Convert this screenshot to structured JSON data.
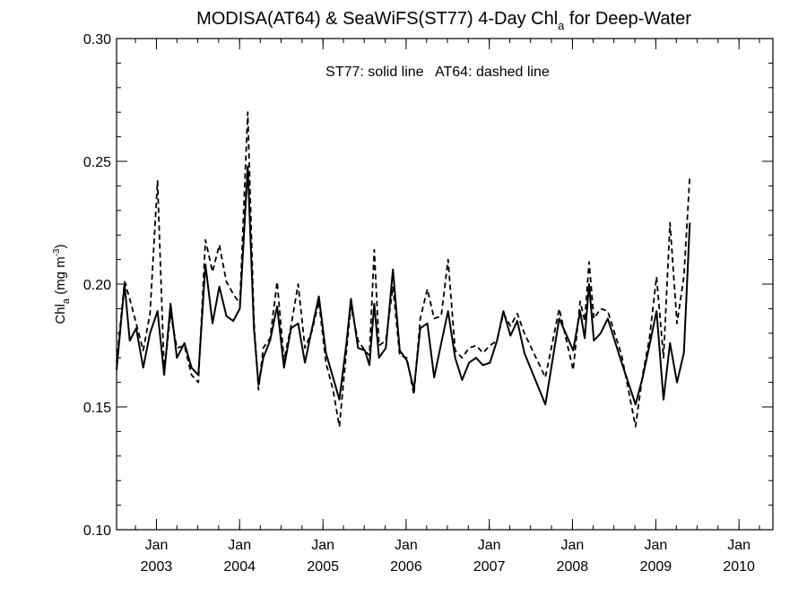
{
  "chart_data": {
    "type": "line",
    "title": {
      "prefix": "MODISA(AT64) & SeaWiFS(ST77) 4-Day Chl",
      "sub": "a",
      "suffix": " for Deep-Water"
    },
    "ylabel": {
      "prefix": "Chl",
      "sub": "a",
      "mid": " (mg m",
      "sup": "-3",
      "suffix": ")"
    },
    "annotation": "ST77: solid line   AT64: dashed line",
    "ylim": [
      0.1,
      0.3
    ],
    "xlim": [
      "2002-07-10",
      "2010-05-30"
    ],
    "y_ticks": [
      "0.10",
      "0.15",
      "0.20",
      "0.25",
      "0.30"
    ],
    "y_tick_values": [
      0.1,
      0.15,
      0.2,
      0.25,
      0.3
    ],
    "x_ticks": [
      {
        "date": "2003-01-01",
        "month": "Jan",
        "year": "2003"
      },
      {
        "date": "2004-01-01",
        "month": "Jan",
        "year": "2004"
      },
      {
        "date": "2005-01-01",
        "month": "Jan",
        "year": "2005"
      },
      {
        "date": "2006-01-01",
        "month": "Jan",
        "year": "2006"
      },
      {
        "date": "2007-01-01",
        "month": "Jan",
        "year": "2007"
      },
      {
        "date": "2008-01-01",
        "month": "Jan",
        "year": "2008"
      },
      {
        "date": "2009-01-01",
        "month": "Jan",
        "year": "2009"
      },
      {
        "date": "2010-01-01",
        "month": "Jan",
        "year": "2010"
      }
    ],
    "grid": false,
    "series": [
      {
        "name": "ST77",
        "style": "solid",
        "color": "#000000",
        "points": [
          [
            "2002-07-10",
            0.165
          ],
          [
            "2002-08-14",
            0.2
          ],
          [
            "2002-09-06",
            0.177
          ],
          [
            "2002-10-04",
            0.182
          ],
          [
            "2002-11-04",
            0.166
          ],
          [
            "2002-12-04",
            0.18
          ],
          [
            "2003-01-06",
            0.189
          ],
          [
            "2003-02-04",
            0.163
          ],
          [
            "2003-03-04",
            0.192
          ],
          [
            "2003-04-01",
            0.17
          ],
          [
            "2003-05-04",
            0.176
          ],
          [
            "2003-06-04",
            0.166
          ],
          [
            "2003-07-04",
            0.163
          ],
          [
            "2003-08-04",
            0.208
          ],
          [
            "2003-09-04",
            0.184
          ],
          [
            "2003-10-04",
            0.199
          ],
          [
            "2003-11-04",
            0.187
          ],
          [
            "2003-12-04",
            0.185
          ],
          [
            "2004-01-02",
            0.19
          ],
          [
            "2004-02-06",
            0.248
          ],
          [
            "2004-03-04",
            0.182
          ],
          [
            "2004-03-24",
            0.159
          ],
          [
            "2004-04-14",
            0.17
          ],
          [
            "2004-05-14",
            0.177
          ],
          [
            "2004-06-14",
            0.191
          ],
          [
            "2004-07-14",
            0.166
          ],
          [
            "2004-08-14",
            0.182
          ],
          [
            "2004-09-14",
            0.184
          ],
          [
            "2004-10-14",
            0.168
          ],
          [
            "2004-11-14",
            0.182
          ],
          [
            "2004-12-14",
            0.195
          ],
          [
            "2005-01-14",
            0.172
          ],
          [
            "2005-02-14",
            0.162
          ],
          [
            "2005-03-14",
            0.153
          ],
          [
            "2005-04-14",
            0.176
          ],
          [
            "2005-05-04",
            0.194
          ],
          [
            "2005-06-04",
            0.174
          ],
          [
            "2005-07-04",
            0.173
          ],
          [
            "2005-07-24",
            0.167
          ],
          [
            "2005-08-14",
            0.192
          ],
          [
            "2005-09-04",
            0.17
          ],
          [
            "2005-10-04",
            0.174
          ],
          [
            "2005-11-04",
            0.206
          ],
          [
            "2005-12-04",
            0.173
          ],
          [
            "2006-01-04",
            0.169
          ],
          [
            "2006-02-04",
            0.157
          ],
          [
            "2006-03-04",
            0.182
          ],
          [
            "2006-04-04",
            0.184
          ],
          [
            "2006-05-04",
            0.162
          ],
          [
            "2006-06-04",
            0.176
          ],
          [
            "2006-07-04",
            0.189
          ],
          [
            "2006-08-04",
            0.17
          ],
          [
            "2006-09-04",
            0.161
          ],
          [
            "2006-10-04",
            0.168
          ],
          [
            "2006-11-04",
            0.17
          ],
          [
            "2006-12-04",
            0.167
          ],
          [
            "2007-01-04",
            0.168
          ],
          [
            "2007-02-04",
            0.177
          ],
          [
            "2007-03-04",
            0.189
          ],
          [
            "2007-04-04",
            0.179
          ],
          [
            "2007-05-04",
            0.185
          ],
          [
            "2007-06-04",
            0.172
          ],
          [
            "2007-09-04",
            0.151
          ],
          [
            "2007-11-04",
            0.186
          ],
          [
            "2008-01-04",
            0.173
          ],
          [
            "2008-02-04",
            0.189
          ],
          [
            "2008-02-24",
            0.178
          ],
          [
            "2008-03-14",
            0.2
          ],
          [
            "2008-04-04",
            0.177
          ],
          [
            "2008-05-04",
            0.18
          ],
          [
            "2008-06-04",
            0.186
          ],
          [
            "2008-08-04",
            0.168
          ],
          [
            "2008-10-04",
            0.151
          ],
          [
            "2008-11-04",
            0.162
          ],
          [
            "2008-12-04",
            0.175
          ],
          [
            "2009-01-04",
            0.189
          ],
          [
            "2009-02-04",
            0.153
          ],
          [
            "2009-03-04",
            0.176
          ],
          [
            "2009-04-04",
            0.16
          ],
          [
            "2009-05-04",
            0.172
          ],
          [
            "2009-05-30",
            0.225
          ]
        ]
      },
      {
        "name": "AT64",
        "style": "dashed",
        "color": "#000000",
        "points": [
          [
            "2002-07-10",
            0.168
          ],
          [
            "2002-08-14",
            0.201
          ],
          [
            "2002-09-06",
            0.194
          ],
          [
            "2002-10-04",
            0.184
          ],
          [
            "2002-11-04",
            0.173
          ],
          [
            "2002-12-04",
            0.188
          ],
          [
            "2003-01-06",
            0.242
          ],
          [
            "2003-02-04",
            0.164
          ],
          [
            "2003-03-04",
            0.188
          ],
          [
            "2003-04-01",
            0.174
          ],
          [
            "2003-05-04",
            0.175
          ],
          [
            "2003-06-04",
            0.163
          ],
          [
            "2003-07-04",
            0.16
          ],
          [
            "2003-08-04",
            0.218
          ],
          [
            "2003-09-04",
            0.205
          ],
          [
            "2003-10-04",
            0.216
          ],
          [
            "2003-11-04",
            0.201
          ],
          [
            "2003-12-04",
            0.196
          ],
          [
            "2004-01-02",
            0.192
          ],
          [
            "2004-02-06",
            0.27
          ],
          [
            "2004-03-04",
            0.185
          ],
          [
            "2004-03-24",
            0.157
          ],
          [
            "2004-04-14",
            0.174
          ],
          [
            "2004-05-14",
            0.178
          ],
          [
            "2004-06-14",
            0.201
          ],
          [
            "2004-07-14",
            0.169
          ],
          [
            "2004-08-14",
            0.183
          ],
          [
            "2004-09-14",
            0.2
          ],
          [
            "2004-10-14",
            0.174
          ],
          [
            "2004-11-14",
            0.181
          ],
          [
            "2004-12-14",
            0.193
          ],
          [
            "2005-01-14",
            0.168
          ],
          [
            "2005-02-14",
            0.157
          ],
          [
            "2005-03-14",
            0.142
          ],
          [
            "2005-04-14",
            0.173
          ],
          [
            "2005-05-04",
            0.191
          ],
          [
            "2005-06-04",
            0.177
          ],
          [
            "2005-07-04",
            0.173
          ],
          [
            "2005-07-24",
            0.171
          ],
          [
            "2005-08-14",
            0.214
          ],
          [
            "2005-09-04",
            0.175
          ],
          [
            "2005-10-04",
            0.177
          ],
          [
            "2005-11-04",
            0.199
          ],
          [
            "2005-12-04",
            0.171
          ],
          [
            "2006-01-04",
            0.17
          ],
          [
            "2006-02-04",
            0.155
          ],
          [
            "2006-03-04",
            0.186
          ],
          [
            "2006-04-04",
            0.198
          ],
          [
            "2006-05-04",
            0.186
          ],
          [
            "2006-06-04",
            0.187
          ],
          [
            "2006-07-04",
            0.21
          ],
          [
            "2006-08-04",
            0.173
          ],
          [
            "2006-09-04",
            0.17
          ],
          [
            "2006-10-04",
            0.174
          ],
          [
            "2006-11-04",
            0.175
          ],
          [
            "2006-12-04",
            0.172
          ],
          [
            "2007-01-04",
            0.175
          ],
          [
            "2007-02-04",
            0.177
          ],
          [
            "2007-03-04",
            0.188
          ],
          [
            "2007-04-04",
            0.183
          ],
          [
            "2007-05-04",
            0.188
          ],
          [
            "2007-06-04",
            0.18
          ],
          [
            "2007-09-04",
            0.162
          ],
          [
            "2007-11-04",
            0.19
          ],
          [
            "2008-01-04",
            0.165
          ],
          [
            "2008-02-04",
            0.193
          ],
          [
            "2008-02-24",
            0.185
          ],
          [
            "2008-03-14",
            0.209
          ],
          [
            "2008-04-04",
            0.186
          ],
          [
            "2008-05-04",
            0.19
          ],
          [
            "2008-06-04",
            0.189
          ],
          [
            "2008-08-04",
            0.171
          ],
          [
            "2008-10-04",
            0.142
          ],
          [
            "2008-11-04",
            0.163
          ],
          [
            "2008-12-04",
            0.178
          ],
          [
            "2009-01-04",
            0.203
          ],
          [
            "2009-02-04",
            0.17
          ],
          [
            "2009-03-04",
            0.225
          ],
          [
            "2009-04-04",
            0.184
          ],
          [
            "2009-05-04",
            0.203
          ],
          [
            "2009-05-30",
            0.244
          ]
        ]
      }
    ]
  }
}
